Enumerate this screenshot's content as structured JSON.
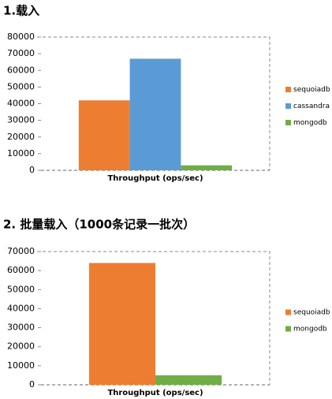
{
  "chart_data": [
    {
      "type": "bar",
      "title": "1.载入",
      "categories": [
        "Throughput (ops/sec)"
      ],
      "series": [
        {
          "name": "sequoiadb",
          "color": "#ed7d31",
          "values": [
            42000
          ]
        },
        {
          "name": "cassandra",
          "color": "#5b9bd5",
          "values": [
            67000
          ]
        },
        {
          "name": "mongodb",
          "color": "#70ad47",
          "values": [
            3000
          ]
        }
      ],
      "ylim": [
        0,
        80000
      ],
      "yticks": [
        0,
        10000,
        20000,
        30000,
        40000,
        50000,
        60000,
        70000,
        80000
      ],
      "legend": "right"
    },
    {
      "type": "bar",
      "title": "2. 批量载入（1000条记录一批次）",
      "categories": [
        "Throughput (ops/sec)"
      ],
      "series": [
        {
          "name": "sequoiadb",
          "color": "#ed7d31",
          "values": [
            64000
          ]
        },
        {
          "name": "mongodb",
          "color": "#70ad47",
          "values": [
            5000
          ]
        }
      ],
      "ylim": [
        0,
        70000
      ],
      "yticks": [
        0,
        10000,
        20000,
        30000,
        40000,
        50000,
        60000,
        70000
      ],
      "legend": "right"
    }
  ]
}
